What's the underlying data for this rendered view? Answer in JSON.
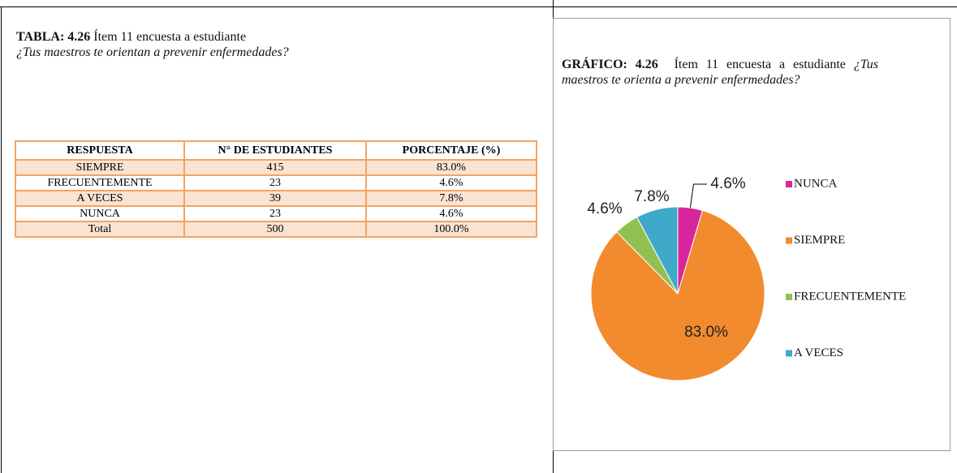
{
  "tabla": {
    "label": "TABLA: 4.26",
    "text": "Ítem 11 encuesta a estudiante",
    "question": "¿Tus maestros te orientan a prevenir enfermedades?"
  },
  "table": {
    "header": [
      "RESPUESTA",
      "N° DE ESTUDIANTES",
      "PORCENTAJE (%)"
    ],
    "rows": [
      [
        "SIEMPRE",
        415,
        "83.0%"
      ],
      [
        "FRECUENTEMENTE",
        23,
        "4.6%"
      ],
      [
        "A VECES",
        39,
        "7.8%"
      ],
      [
        "NUNCA",
        23,
        "4.6%"
      ],
      [
        "Total",
        500,
        "100.0%"
      ]
    ]
  },
  "grafico": {
    "label": "GRÁFICO: 4.26",
    "text": "Ítem 11 encuesta a estudiante",
    "question": "¿Tus maestros te orienta a prevenir enfermedades?"
  },
  "chart_data": {
    "type": "pie",
    "categories": [
      "NUNCA",
      "SIEMPRE",
      "FRECUENTEMENTE",
      "A VECES"
    ],
    "values": [
      4.6,
      83.0,
      4.6,
      7.8
    ],
    "value_labels": [
      "4.6%",
      "83.0%",
      "4.6%",
      "7.8%"
    ],
    "colors": [
      "#d9259b",
      "#f28a2e",
      "#92c050",
      "#3fa9c9"
    ],
    "legend": "right"
  }
}
